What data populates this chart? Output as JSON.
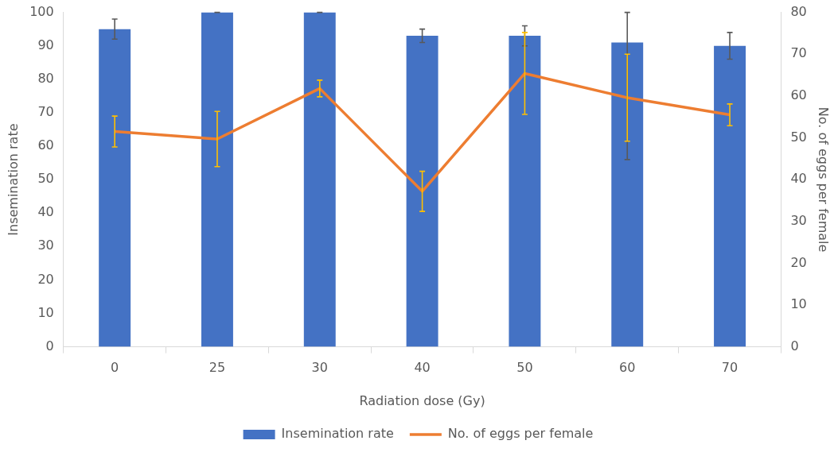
{
  "chart_data": {
    "type": "bar",
    "xlabel": "Radiation dose (Gy)",
    "ylabel": "Insemination rate",
    "y2label": "No. of eggs per female",
    "categories": [
      "0",
      "25",
      "30",
      "40",
      "50",
      "60",
      "70"
    ],
    "series": [
      {
        "name": "Insemination rate",
        "color": "#4472c4",
        "values": [
          95,
          100,
          100,
          93,
          93,
          91,
          90
        ],
        "errors": [
          3,
          0,
          0,
          2,
          3,
          [
            56,
            100
          ],
          4
        ]
      },
      {
        "name": "No. of eggs per female",
        "type": "line",
        "axis": "y2",
        "color": "#ed7d31",
        "values": [
          51.5,
          49.7,
          61.8,
          37.2,
          65.4,
          59.6,
          55.5
        ],
        "errors": [
          3.7,
          6.6,
          2,
          4.8,
          9.8,
          10.4,
          2.6
        ],
        "marker": "none"
      }
    ],
    "ylim": [
      0,
      100
    ],
    "yticks": [
      0,
      10,
      20,
      30,
      40,
      50,
      60,
      70,
      80,
      90,
      100
    ],
    "y2lim": [
      0,
      80
    ],
    "y2ticks": [
      0,
      10,
      20,
      30,
      40,
      50,
      60,
      70,
      80
    ],
    "grid": false,
    "legend": "bottom"
  }
}
